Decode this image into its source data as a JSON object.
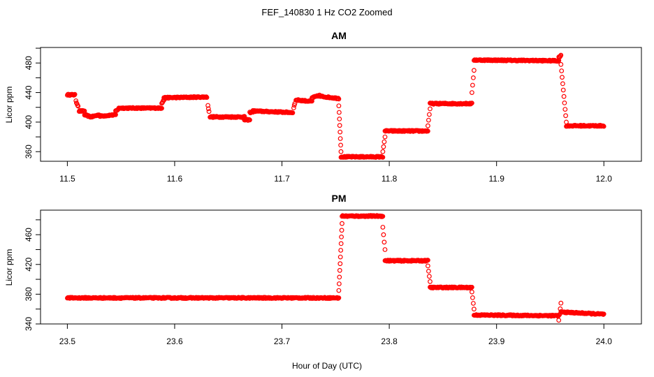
{
  "title": "FEF_140830  1 Hz CO2 Zoomed",
  "xlabel": "Hour of Day (UTC)",
  "marker_color": "#ff0000",
  "chart_data": [
    {
      "type": "scatter",
      "title": "AM",
      "xlabel": "Hour of Day (UTC)",
      "ylabel": "Licor ppm",
      "xlim": [
        11.475,
        12.035
      ],
      "ylim": [
        347,
        501
      ],
      "xticks": [
        "11.5",
        "11.6",
        "11.7",
        "11.8",
        "11.9",
        "12.0"
      ],
      "yticks": [
        "360",
        "400",
        "440",
        "480"
      ],
      "marker": "open-circle",
      "segments": [
        {
          "x0": 11.5,
          "x1": 11.507,
          "y0": 437,
          "y1": 437
        },
        {
          "x0": 11.508,
          "x1": 11.51,
          "y0": 428,
          "y1": 422
        },
        {
          "x0": 11.511,
          "x1": 11.516,
          "y0": 415,
          "y1": 415
        },
        {
          "x0": 11.516,
          "x1": 11.522,
          "y0": 410,
          "y1": 407
        },
        {
          "x0": 11.522,
          "x1": 11.53,
          "y0": 407,
          "y1": 410
        },
        {
          "x0": 11.53,
          "x1": 11.545,
          "y0": 408,
          "y1": 410
        },
        {
          "x0": 11.545,
          "x1": 11.548,
          "y0": 415,
          "y1": 418
        },
        {
          "x0": 11.548,
          "x1": 11.588,
          "y0": 419,
          "y1": 419
        },
        {
          "x0": 11.588,
          "x1": 11.59,
          "y0": 426,
          "y1": 430
        },
        {
          "x0": 11.59,
          "x1": 11.63,
          "y0": 433,
          "y1": 434
        },
        {
          "x0": 11.631,
          "x1": 11.632,
          "y0": 422,
          "y1": 415
        },
        {
          "x0": 11.633,
          "x1": 11.665,
          "y0": 407,
          "y1": 407
        },
        {
          "x0": 11.665,
          "x1": 11.67,
          "y0": 403,
          "y1": 403
        },
        {
          "x0": 11.67,
          "x1": 11.673,
          "y0": 413,
          "y1": 414
        },
        {
          "x0": 11.673,
          "x1": 11.71,
          "y0": 415,
          "y1": 413
        },
        {
          "x0": 11.711,
          "x1": 11.712,
          "y0": 420,
          "y1": 425
        },
        {
          "x0": 11.713,
          "x1": 11.728,
          "y0": 430,
          "y1": 428
        },
        {
          "x0": 11.728,
          "x1": 11.735,
          "y0": 433,
          "y1": 436
        },
        {
          "x0": 11.735,
          "x1": 11.753,
          "y0": 435,
          "y1": 432
        },
        {
          "x0": 11.753,
          "x1": 11.755,
          "y0": 422,
          "y1": 360
        },
        {
          "x0": 11.755,
          "x1": 11.794,
          "y0": 353,
          "y1": 353
        },
        {
          "x0": 11.794,
          "x1": 11.796,
          "y0": 360,
          "y1": 380
        },
        {
          "x0": 11.796,
          "x1": 11.836,
          "y0": 388,
          "y1": 388
        },
        {
          "x0": 11.836,
          "x1": 11.838,
          "y0": 395,
          "y1": 418
        },
        {
          "x0": 11.838,
          "x1": 11.877,
          "y0": 425,
          "y1": 425
        },
        {
          "x0": 11.877,
          "x1": 11.879,
          "y0": 440,
          "y1": 470
        },
        {
          "x0": 11.879,
          "x1": 11.958,
          "y0": 484,
          "y1": 483
        },
        {
          "x0": 11.958,
          "x1": 11.96,
          "y0": 488,
          "y1": 490
        },
        {
          "x0": 11.96,
          "x1": 11.965,
          "y0": 478,
          "y1": 400
        },
        {
          "x0": 11.965,
          "x1": 12.0,
          "y0": 395,
          "y1": 395
        }
      ]
    },
    {
      "type": "scatter",
      "title": "PM",
      "xlabel": "Hour of Day (UTC)",
      "ylabel": "Licor ppm",
      "xlim": [
        23.475,
        24.035
      ],
      "ylim": [
        340,
        493
      ],
      "xticks": [
        "23.5",
        "23.6",
        "23.7",
        "23.8",
        "23.9",
        "24.0"
      ],
      "yticks": [
        "340",
        "380",
        "420",
        "460"
      ],
      "marker": "open-circle",
      "segments": [
        {
          "x0": 23.5,
          "x1": 23.753,
          "y0": 375,
          "y1": 375
        },
        {
          "x0": 23.753,
          "x1": 23.756,
          "y0": 385,
          "y1": 475
        },
        {
          "x0": 23.756,
          "x1": 23.794,
          "y0": 485,
          "y1": 485
        },
        {
          "x0": 23.794,
          "x1": 23.796,
          "y0": 470,
          "y1": 440
        },
        {
          "x0": 23.796,
          "x1": 23.836,
          "y0": 425,
          "y1": 425
        },
        {
          "x0": 23.836,
          "x1": 23.838,
          "y0": 418,
          "y1": 397
        },
        {
          "x0": 23.838,
          "x1": 23.877,
          "y0": 389,
          "y1": 389
        },
        {
          "x0": 23.877,
          "x1": 23.879,
          "y0": 383,
          "y1": 360
        },
        {
          "x0": 23.879,
          "x1": 23.958,
          "y0": 352,
          "y1": 351
        },
        {
          "x0": 23.958,
          "x1": 23.96,
          "y0": 345,
          "y1": 368
        },
        {
          "x0": 23.96,
          "x1": 24.0,
          "y0": 356,
          "y1": 353
        }
      ]
    }
  ]
}
